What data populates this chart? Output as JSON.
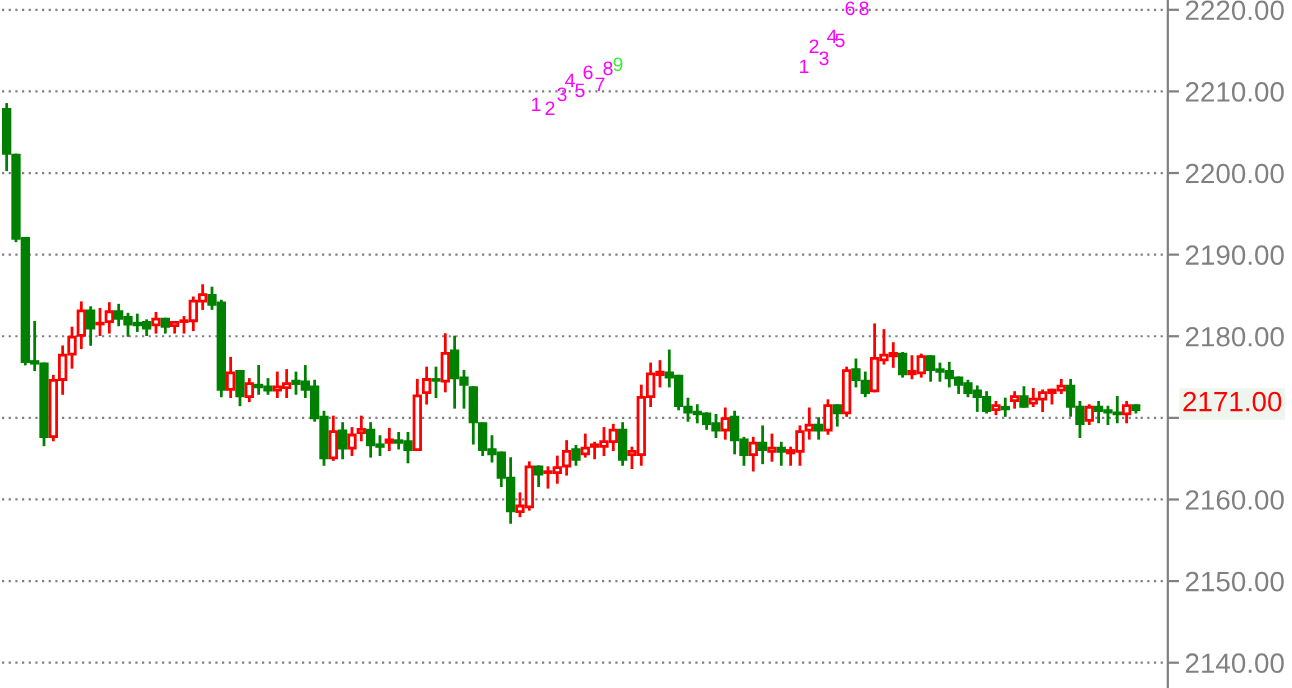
{
  "chart_data": {
    "type": "candlestick",
    "categories": [
      null,
      null,
      null,
      null,
      null,
      null,
      null,
      null,
      null,
      null,
      null,
      null,
      null,
      null,
      null,
      null,
      null,
      null,
      null,
      null,
      null,
      null,
      null,
      null,
      null,
      null,
      null,
      null,
      null,
      null,
      null,
      null,
      null,
      null,
      null,
      null,
      null,
      null,
      null,
      null,
      null,
      null,
      null,
      null,
      null,
      null,
      null,
      null,
      null,
      null,
      null,
      null,
      null,
      null,
      null,
      null,
      null,
      null,
      null,
      null,
      null,
      null,
      null,
      null,
      null,
      null,
      null,
      null,
      null,
      null,
      null,
      null,
      null,
      null,
      null,
      null,
      null,
      null,
      null,
      null,
      null,
      null,
      null,
      null,
      null,
      null,
      null,
      null,
      null,
      null,
      null,
      null,
      null,
      null,
      null,
      null,
      null,
      null,
      null,
      null,
      null,
      null,
      null,
      null,
      null,
      null,
      null,
      null,
      null,
      null,
      null,
      null,
      null,
      null,
      null,
      null,
      null,
      null,
      null,
      null,
      null,
      null
    ],
    "ohlc": [
      [
        2207.8,
        2208.4,
        2200.4,
        2202.4
      ],
      [
        2202.2,
        2202.2,
        2191.7,
        2192.0
      ],
      [
        2192.0,
        2192.0,
        2176.6,
        2176.9
      ],
      [
        2176.9,
        2181.7,
        2175.9,
        2176.7
      ],
      [
        2176.6,
        2176.6,
        2166.7,
        2167.7
      ],
      [
        2167.7,
        2175.1,
        2167.3,
        2174.6
      ],
      [
        2174.7,
        2178.7,
        2173.0,
        2177.7
      ],
      [
        2177.8,
        2181.0,
        2176.2,
        2179.9
      ],
      [
        2180.1,
        2184.1,
        2178.6,
        2183.1
      ],
      [
        2183.1,
        2183.5,
        2179.0,
        2181.0
      ],
      [
        2181.5,
        2183.3,
        2180.2,
        2181.6
      ],
      [
        2181.8,
        2184.0,
        2180.5,
        2183.0
      ],
      [
        2183.0,
        2183.8,
        2181.4,
        2182.2
      ],
      [
        2182.3,
        2182.7,
        2180.1,
        2181.5
      ],
      [
        2181.6,
        2182.6,
        2180.7,
        2181.4
      ],
      [
        2181.7,
        2181.9,
        2180.2,
        2181.0
      ],
      [
        2181.4,
        2182.8,
        2180.5,
        2182.1
      ],
      [
        2182.1,
        2182.1,
        2180.5,
        2181.2
      ],
      [
        2181.3,
        2181.7,
        2180.5,
        2181.7
      ],
      [
        2181.8,
        2182.3,
        2180.5,
        2181.9
      ],
      [
        2181.9,
        2184.7,
        2180.8,
        2184.3
      ],
      [
        2184.3,
        2186.2,
        2183.4,
        2185.1
      ],
      [
        2185.0,
        2185.9,
        2183.4,
        2183.9
      ],
      [
        2184.1,
        2184.3,
        2172.7,
        2173.5
      ],
      [
        2173.5,
        2177.3,
        2172.6,
        2175.5
      ],
      [
        2175.7,
        2175.7,
        2171.6,
        2172.7
      ],
      [
        2172.6,
        2174.7,
        2172.1,
        2174.2
      ],
      [
        2174.0,
        2176.3,
        2173.0,
        2173.8
      ],
      [
        2173.8,
        2174.7,
        2173.0,
        2173.4
      ],
      [
        2173.4,
        2175.5,
        2172.6,
        2173.8
      ],
      [
        2173.7,
        2175.8,
        2172.6,
        2174.2
      ],
      [
        2174.5,
        2175.5,
        2173.0,
        2174.2
      ],
      [
        2174.4,
        2176.3,
        2172.6,
        2173.5
      ],
      [
        2173.8,
        2174.5,
        2169.7,
        2170.0
      ],
      [
        2170.1,
        2170.7,
        2164.3,
        2165.1
      ],
      [
        2165.1,
        2170.1,
        2164.9,
        2168.3
      ],
      [
        2168.4,
        2169.3,
        2165.1,
        2166.3
      ],
      [
        2166.3,
        2168.7,
        2165.5,
        2167.9
      ],
      [
        2168.2,
        2170.1,
        2167.3,
        2168.6
      ],
      [
        2168.5,
        2169.3,
        2165.3,
        2166.7
      ],
      [
        2166.7,
        2167.7,
        2165.5,
        2166.5
      ],
      [
        2167.0,
        2168.6,
        2166.1,
        2167.3
      ],
      [
        2167.2,
        2168.1,
        2166.3,
        2167.0
      ],
      [
        2167.1,
        2168.1,
        2164.6,
        2166.1
      ],
      [
        2166.1,
        2174.6,
        2166.1,
        2172.7
      ],
      [
        2173.1,
        2176.1,
        2171.8,
        2174.7
      ],
      [
        2174.7,
        2176.1,
        2172.6,
        2174.6
      ],
      [
        2174.5,
        2180.2,
        2173.3,
        2177.9
      ],
      [
        2178.2,
        2179.9,
        2171.3,
        2174.9
      ],
      [
        2174.9,
        2175.7,
        2171.3,
        2174.1
      ],
      [
        2173.7,
        2173.7,
        2166.9,
        2169.5
      ],
      [
        2169.3,
        2169.3,
        2165.5,
        2166.1
      ],
      [
        2166.1,
        2167.7,
        2164.7,
        2165.6
      ],
      [
        2165.7,
        2165.7,
        2161.7,
        2162.7
      ],
      [
        2162.6,
        2165.0,
        2157.2,
        2158.6
      ],
      [
        2158.5,
        2160.7,
        2158.0,
        2159.2
      ],
      [
        2159.1,
        2164.5,
        2158.8,
        2164.0
      ],
      [
        2164.0,
        2164.0,
        2161.7,
        2163.1
      ],
      [
        2163.3,
        2163.9,
        2161.5,
        2163.4
      ],
      [
        2163.3,
        2165.2,
        2162.1,
        2163.9
      ],
      [
        2164.1,
        2167.1,
        2163.1,
        2165.9
      ],
      [
        2166.1,
        2166.5,
        2164.3,
        2164.9
      ],
      [
        2165.6,
        2167.9,
        2165.3,
        2166.3
      ],
      [
        2166.5,
        2166.9,
        2165.1,
        2166.7
      ],
      [
        2166.5,
        2168.7,
        2165.5,
        2167.1
      ],
      [
        2167.1,
        2169.1,
        2166.1,
        2168.5
      ],
      [
        2168.5,
        2169.3,
        2164.3,
        2164.9
      ],
      [
        2165.5,
        2166.3,
        2163.9,
        2165.9
      ],
      [
        2165.5,
        2173.9,
        2164.3,
        2172.5
      ],
      [
        2172.6,
        2176.6,
        2171.5,
        2175.4
      ],
      [
        2175.3,
        2176.9,
        2173.9,
        2175.6
      ],
      [
        2175.5,
        2178.2,
        2173.9,
        2175.0
      ],
      [
        2175.1,
        2175.1,
        2171.1,
        2171.5
      ],
      [
        2171.3,
        2172.3,
        2169.7,
        2170.7
      ],
      [
        2170.7,
        2171.5,
        2169.5,
        2170.5
      ],
      [
        2170.5,
        2170.5,
        2168.7,
        2169.3
      ],
      [
        2169.3,
        2170.3,
        2167.7,
        2168.5
      ],
      [
        2168.5,
        2171.1,
        2167.5,
        2169.9
      ],
      [
        2170.1,
        2170.7,
        2165.7,
        2167.3
      ],
      [
        2167.3,
        2167.5,
        2164.3,
        2165.5
      ],
      [
        2165.5,
        2167.5,
        2163.6,
        2166.9
      ],
      [
        2166.9,
        2168.9,
        2164.5,
        2166.1
      ],
      [
        2165.9,
        2167.9,
        2164.8,
        2166.3
      ],
      [
        2166.3,
        2166.9,
        2164.3,
        2165.9
      ],
      [
        2165.7,
        2166.3,
        2164.3,
        2166.0
      ],
      [
        2165.9,
        2168.9,
        2164.3,
        2168.3
      ],
      [
        2168.5,
        2171.1,
        2167.5,
        2169.1
      ],
      [
        2169.1,
        2169.9,
        2167.5,
        2168.5
      ],
      [
        2168.5,
        2172.1,
        2168.1,
        2171.5
      ],
      [
        2171.5,
        2171.5,
        2169.1,
        2170.6
      ],
      [
        2170.6,
        2176.1,
        2170.3,
        2175.8
      ],
      [
        2175.9,
        2177.1,
        2173.9,
        2174.7
      ],
      [
        2174.5,
        2175.5,
        2172.7,
        2173.1
      ],
      [
        2173.3,
        2181.4,
        2173.3,
        2177.3
      ],
      [
        2177.1,
        2180.7,
        2176.7,
        2177.7
      ],
      [
        2177.6,
        2179.1,
        2176.3,
        2177.9
      ],
      [
        2177.8,
        2177.9,
        2175.1,
        2175.4
      ],
      [
        2175.4,
        2177.5,
        2174.9,
        2175.7
      ],
      [
        2175.5,
        2177.7,
        2175.1,
        2177.5
      ],
      [
        2177.5,
        2177.5,
        2174.6,
        2175.9
      ],
      [
        2175.9,
        2176.6,
        2174.6,
        2175.7
      ],
      [
        2175.7,
        2176.7,
        2173.9,
        2174.9
      ],
      [
        2174.9,
        2174.9,
        2173.1,
        2174.1
      ],
      [
        2174.2,
        2174.5,
        2172.7,
        2173.1
      ],
      [
        2173.3,
        2173.8,
        2170.9,
        2172.6
      ],
      [
        2172.5,
        2173.1,
        2170.7,
        2170.9
      ],
      [
        2171.0,
        2171.9,
        2170.5,
        2171.5
      ],
      [
        2171.3,
        2172.3,
        2170.3,
        2171.1
      ],
      [
        2172.1,
        2173.1,
        2171.3,
        2172.6
      ],
      [
        2172.6,
        2173.7,
        2171.4,
        2171.4
      ],
      [
        2171.8,
        2173.5,
        2171.5,
        2172.3
      ],
      [
        2172.3,
        2173.3,
        2170.9,
        2173.1
      ],
      [
        2173.1,
        2173.4,
        2171.8,
        2173.4
      ],
      [
        2173.4,
        2174.6,
        2173.1,
        2173.9
      ],
      [
        2173.9,
        2174.6,
        2170.3,
        2171.4
      ],
      [
        2171.3,
        2171.9,
        2167.7,
        2169.3
      ],
      [
        2169.7,
        2171.5,
        2169.3,
        2171.3
      ],
      [
        2171.3,
        2171.9,
        2169.5,
        2170.9
      ],
      [
        2170.9,
        2171.3,
        2169.3,
        2170.7
      ],
      [
        2170.6,
        2172.5,
        2169.5,
        2170.5
      ],
      [
        2170.5,
        2171.9,
        2169.5,
        2171.5
      ],
      [
        2171.5,
        2171.5,
        2170.7,
        2171.0
      ]
    ],
    "colors": [
      "#008000",
      "#008000",
      "#008000",
      "#008000",
      "#008000",
      "#ff0000",
      "#ff0000",
      "#ff0000",
      "#ff0000",
      "#008000",
      "#ff0000",
      "#ff0000",
      "#008000",
      "#008000",
      "#008000",
      "#008000",
      "#ff0000",
      "#008000",
      "#ff0000",
      "#ff0000",
      "#ff0000",
      "#ff0000",
      "#008000",
      "#008000",
      "#ff0000",
      "#008000",
      "#ff0000",
      "#008000",
      "#008000",
      "#ff0000",
      "#ff0000",
      "#008000",
      "#008000",
      "#008000",
      "#008000",
      "#ff0000",
      "#008000",
      "#ff0000",
      "#ff0000",
      "#008000",
      "#008000",
      "#ff0000",
      "#008000",
      "#008000",
      "#ff0000",
      "#ff0000",
      "#008000",
      "#ff0000",
      "#008000",
      "#008000",
      "#008000",
      "#008000",
      "#008000",
      "#008000",
      "#008000",
      "#ff0000",
      "#ff0000",
      "#008000",
      "#ff0000",
      "#ff0000",
      "#ff0000",
      "#008000",
      "#ff0000",
      "#ff0000",
      "#ff0000",
      "#ff0000",
      "#008000",
      "#ff0000",
      "#ff0000",
      "#ff0000",
      "#ff0000",
      "#008000",
      "#008000",
      "#008000",
      "#008000",
      "#008000",
      "#008000",
      "#ff0000",
      "#008000",
      "#008000",
      "#ff0000",
      "#008000",
      "#ff0000",
      "#008000",
      "#ff0000",
      "#ff0000",
      "#ff0000",
      "#008000",
      "#ff0000",
      "#008000",
      "#ff0000",
      "#008000",
      "#008000",
      "#ff0000",
      "#ff0000",
      "#ff0000",
      "#008000",
      "#ff0000",
      "#ff0000",
      "#008000",
      "#008000",
      "#008000",
      "#008000",
      "#008000",
      "#008000",
      "#008000",
      "#ff0000",
      "#008000",
      "#ff0000",
      "#008000",
      "#ff0000",
      "#ff0000",
      "#ff0000",
      "#ff0000",
      "#008000",
      "#008000",
      "#ff0000",
      "#008000",
      "#008000",
      "#008000",
      "#ff0000",
      "#008000"
    ],
    "ylim": [
      2136.9,
      2221.2
    ],
    "yticks": [
      {
        "value": 2140,
        "label": "2140.00"
      },
      {
        "value": 2150,
        "label": "2150.00"
      },
      {
        "value": 2160,
        "label": "2160.00"
      },
      {
        "value": 2170,
        "label": null
      },
      {
        "value": 2180,
        "label": "2180.00"
      },
      {
        "value": 2190,
        "label": "2190.00"
      },
      {
        "value": 2200,
        "label": "2200.00"
      },
      {
        "value": 2210,
        "label": "2210.00"
      },
      {
        "value": 2220,
        "label": "2220.00"
      }
    ],
    "grid": "y",
    "legend": false,
    "annotations": [
      "1",
      "2",
      "3",
      "4",
      "5",
      "6",
      "7",
      "8",
      "9",
      "1",
      "2",
      "3",
      "4",
      "5",
      "6",
      "8",
      "2171.00"
    ]
  }
}
